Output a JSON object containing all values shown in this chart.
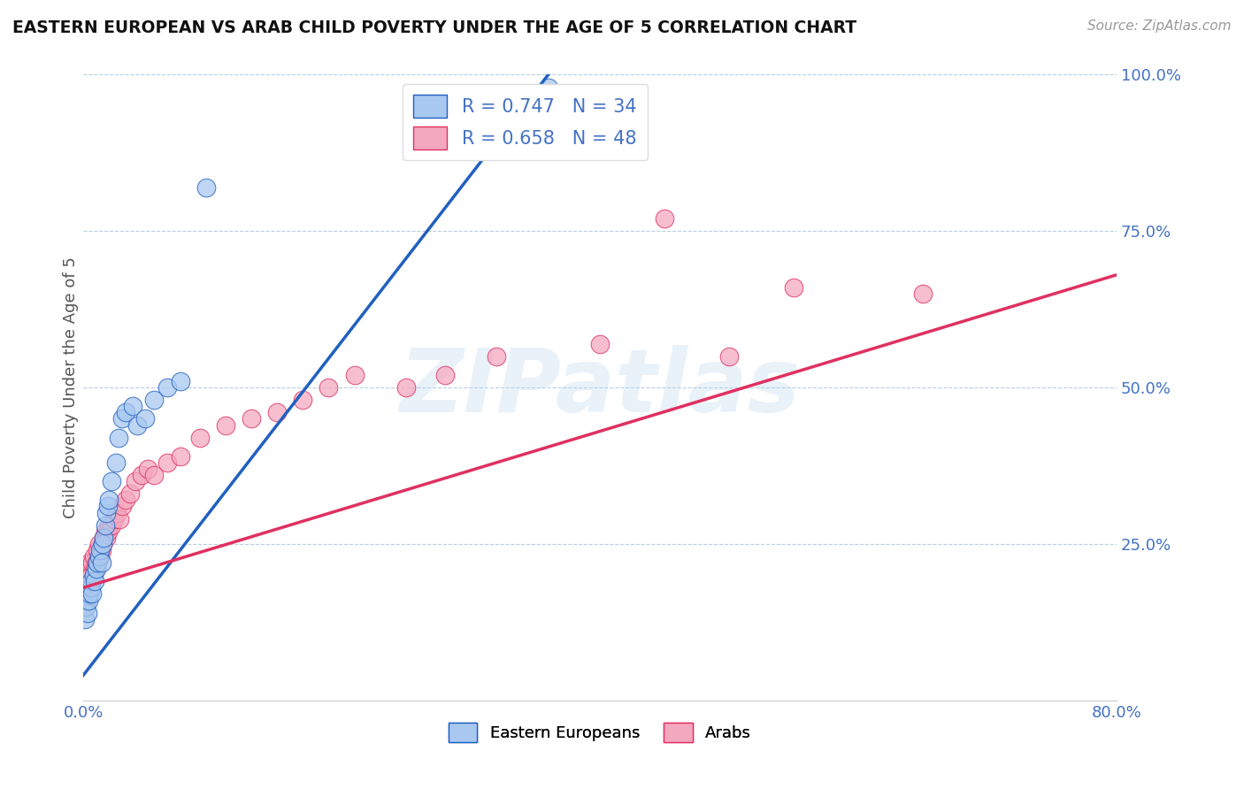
{
  "title": "EASTERN EUROPEAN VS ARAB CHILD POVERTY UNDER THE AGE OF 5 CORRELATION CHART",
  "source": "Source: ZipAtlas.com",
  "ylabel": "Child Poverty Under the Age of 5",
  "xlim": [
    0.0,
    0.8
  ],
  "ylim": [
    0.0,
    1.0
  ],
  "legend_labels": [
    "Eastern Europeans",
    "Arabs"
  ],
  "r_eastern": 0.747,
  "n_eastern": 34,
  "r_arab": 0.658,
  "n_arab": 48,
  "color_eastern": "#a8c8f0",
  "color_arab": "#f4a8c0",
  "line_color_eastern": "#2060c0",
  "line_color_arab": "#e03060",
  "watermark": "ZIPatlas",
  "background_color": "#ffffff",
  "eastern_x": [
    0.001,
    0.002,
    0.003,
    0.004,
    0.005,
    0.006,
    0.006,
    0.007,
    0.008,
    0.009,
    0.01,
    0.011,
    0.012,
    0.013,
    0.014,
    0.015,
    0.016,
    0.017,
    0.018,
    0.019,
    0.02,
    0.022,
    0.025,
    0.027,
    0.03,
    0.033,
    0.038,
    0.042,
    0.048,
    0.055,
    0.065,
    0.075,
    0.095,
    0.36
  ],
  "eastern_y": [
    0.13,
    0.15,
    0.14,
    0.16,
    0.17,
    0.18,
    0.19,
    0.17,
    0.2,
    0.19,
    0.21,
    0.22,
    0.23,
    0.24,
    0.22,
    0.25,
    0.26,
    0.28,
    0.3,
    0.31,
    0.32,
    0.35,
    0.38,
    0.42,
    0.45,
    0.46,
    0.47,
    0.44,
    0.45,
    0.48,
    0.5,
    0.51,
    0.82,
    0.98
  ],
  "arab_x": [
    0.001,
    0.002,
    0.003,
    0.004,
    0.005,
    0.006,
    0.007,
    0.008,
    0.009,
    0.01,
    0.011,
    0.012,
    0.013,
    0.014,
    0.015,
    0.016,
    0.017,
    0.018,
    0.019,
    0.02,
    0.022,
    0.024,
    0.026,
    0.028,
    0.03,
    0.033,
    0.036,
    0.04,
    0.045,
    0.05,
    0.055,
    0.065,
    0.075,
    0.09,
    0.11,
    0.13,
    0.15,
    0.17,
    0.19,
    0.21,
    0.25,
    0.28,
    0.32,
    0.4,
    0.45,
    0.5,
    0.55,
    0.65
  ],
  "arab_y": [
    0.18,
    0.2,
    0.19,
    0.21,
    0.22,
    0.2,
    0.22,
    0.23,
    0.21,
    0.22,
    0.24,
    0.25,
    0.23,
    0.24,
    0.25,
    0.26,
    0.27,
    0.26,
    0.27,
    0.28,
    0.28,
    0.29,
    0.3,
    0.29,
    0.31,
    0.32,
    0.33,
    0.35,
    0.36,
    0.37,
    0.36,
    0.38,
    0.39,
    0.42,
    0.44,
    0.45,
    0.46,
    0.48,
    0.5,
    0.52,
    0.5,
    0.52,
    0.55,
    0.57,
    0.77,
    0.55,
    0.66,
    0.65
  ],
  "eastern_line_x": [
    0.0,
    0.36
  ],
  "eastern_line_y": [
    0.04,
    1.0
  ],
  "arab_line_x": [
    0.0,
    0.8
  ],
  "arab_line_y": [
    0.18,
    0.68
  ]
}
